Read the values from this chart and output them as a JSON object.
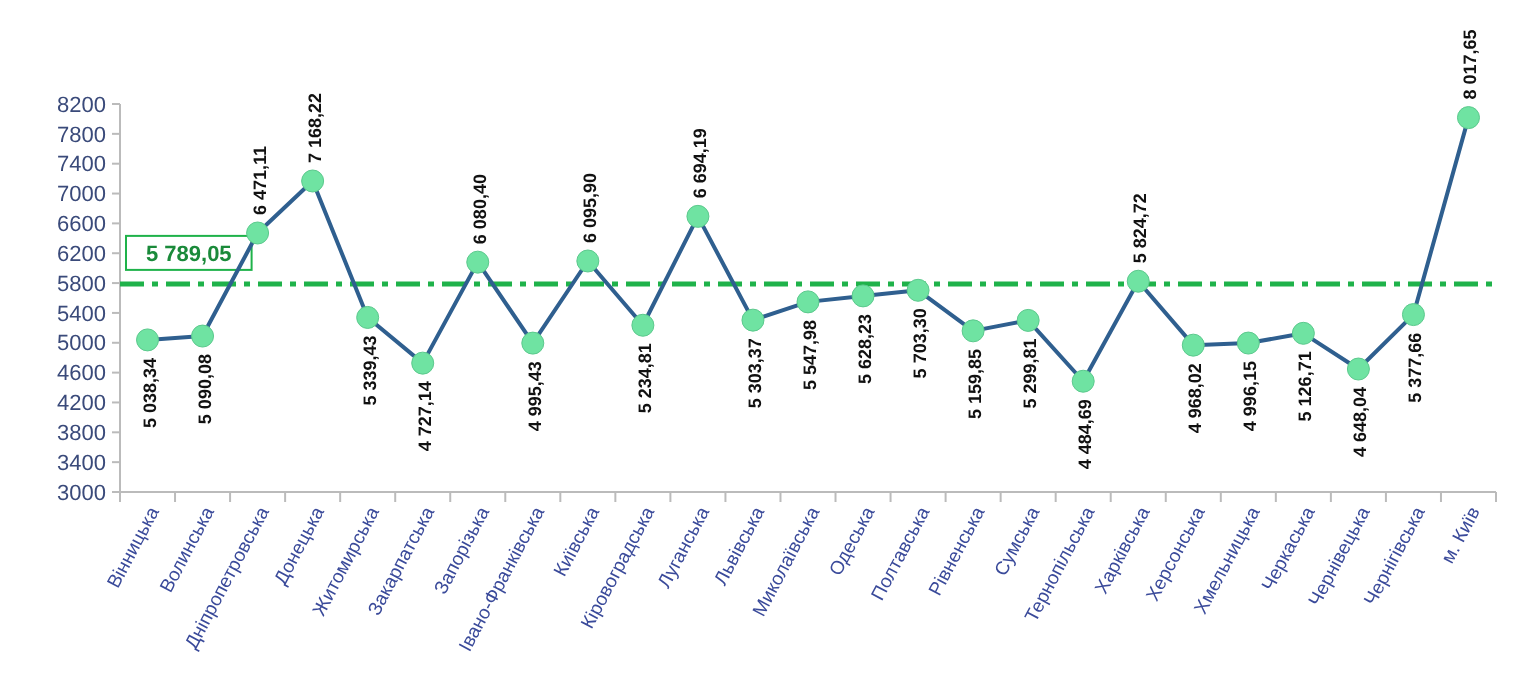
{
  "chart_data": {
    "type": "line",
    "categories": [
      "Вінницька",
      "Волинська",
      "Дніпропетровська",
      "Донецька",
      "Житомирська",
      "Закарпатська",
      "Запорізька",
      "Івано-Франківська",
      "Київська",
      "Кіровоградська",
      "Луганська",
      "Львівська",
      "Миколаївська",
      "Одеська",
      "Полтавська",
      "Рівненська",
      "Сумська",
      "Тернопільська",
      "Харківська",
      "Херсонська",
      "Хмельницька",
      "Черкаська",
      "Чернівецька",
      "Чернігівська",
      "м. Київ"
    ],
    "series": [
      {
        "color": "#2f5f8f",
        "values": [
          5038.34,
          5090.08,
          6471.11,
          7168.22,
          5339.43,
          4727.14,
          6080.4,
          4995.43,
          6095.9,
          5234.81,
          6694.19,
          5303.37,
          5547.98,
          5628.23,
          5703.3,
          5159.85,
          5299.81,
          4484.69,
          5824.72,
          4968.02,
          4996.15,
          5126.71,
          4648.04,
          5377.66,
          8017.65
        ],
        "value_labels": [
          "5 038,34",
          "5 090,08",
          "6 471,11",
          "7 168,22",
          "5 339,43",
          "4 727,14",
          "6 080,40",
          "4 995,43",
          "6 095,90",
          "5 234,81",
          "6 694,19",
          "5 303,37",
          "5 547,98",
          "5 628,23",
          "5 703,30",
          "5 159,85",
          "5 299,81",
          "4 484,69",
          "5 824,72",
          "4 968,02",
          "4 996,15",
          "5 126,71",
          "4 648,04",
          "5 377,66",
          "8 017,65"
        ]
      }
    ],
    "marker": "circle",
    "ylim": [
      3000,
      8200
    ],
    "yticks": [
      3000,
      3400,
      3800,
      4200,
      4600,
      5000,
      5400,
      5800,
      6200,
      6600,
      7000,
      7400,
      7800,
      8200
    ],
    "ref_lines": [
      {
        "axis": "y",
        "value": 5789.05,
        "label": "5 789,05",
        "color": "#1fb24a",
        "line_style": "dashed"
      }
    ]
  }
}
